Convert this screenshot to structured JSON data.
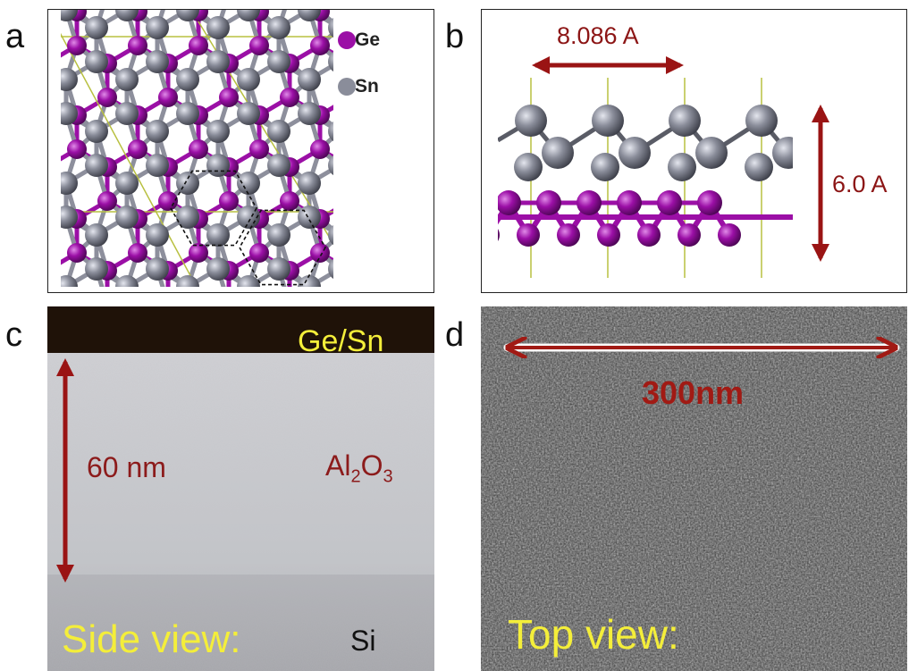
{
  "panels": {
    "a": {
      "letter": "a",
      "legend": [
        {
          "label": "Ge",
          "color": "#9b0fa6"
        },
        {
          "label": "Sn",
          "color": "#8a8d9a"
        }
      ]
    },
    "b": {
      "letter": "b",
      "width_label": "8.086 A",
      "height_label": "6.0 A"
    },
    "c": {
      "letter": "c",
      "top_label": "Ge/Sn",
      "thickness_label": "60 nm",
      "oxide_main": "Al",
      "oxide_sub1": "2",
      "oxide_mid": "O",
      "oxide_sub2": "3",
      "view_label": "Side view:",
      "substrate_label": "Si"
    },
    "d": {
      "letter": "d",
      "scale_label": "300nm",
      "view_label": "Top view:"
    }
  },
  "colors": {
    "ge": "#9b0fa6",
    "sn": "#8a8d9a",
    "arrow": "#9a1414",
    "yellow": "#f4ee3a",
    "cell_line": "#b8c040"
  }
}
